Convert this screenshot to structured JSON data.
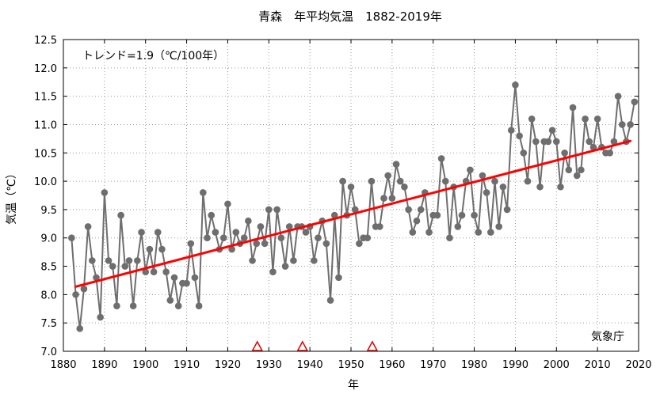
{
  "chart_data": {
    "type": "line",
    "title": "青森　年平均気温　1882-2019年",
    "xlabel": "年",
    "ylabel": "気温（℃）",
    "xlim": [
      1880,
      2020
    ],
    "ylim": [
      7.0,
      12.5
    ],
    "xticks": [
      1880,
      1890,
      1900,
      1910,
      1920,
      1930,
      1940,
      1950,
      1960,
      1970,
      1980,
      1990,
      2000,
      2010,
      2020
    ],
    "yticks": [
      "7.0",
      "7.5",
      "8.0",
      "8.5",
      "9.0",
      "9.5",
      "10.0",
      "10.5",
      "11.0",
      "11.5",
      "12.0",
      "12.5"
    ],
    "grid": true,
    "trend_label": "トレンド=1.9（℃/100年）",
    "source_label": "気象庁",
    "series": [
      {
        "name": "年平均気温",
        "color": "#6e6e6e",
        "x": [
          1882,
          1883,
          1884,
          1885,
          1886,
          1887,
          1888,
          1889,
          1890,
          1891,
          1892,
          1893,
          1894,
          1895,
          1896,
          1897,
          1898,
          1899,
          1900,
          1901,
          1902,
          1903,
          1904,
          1905,
          1906,
          1907,
          1908,
          1909,
          1910,
          1911,
          1912,
          1913,
          1914,
          1915,
          1916,
          1917,
          1918,
          1919,
          1920,
          1921,
          1922,
          1923,
          1924,
          1925,
          1926,
          1927,
          1928,
          1929,
          1930,
          1931,
          1932,
          1933,
          1934,
          1935,
          1936,
          1937,
          1938,
          1939,
          1940,
          1941,
          1942,
          1943,
          1944,
          1945,
          1946,
          1947,
          1948,
          1949,
          1950,
          1951,
          1952,
          1953,
          1954,
          1955,
          1956,
          1957,
          1958,
          1959,
          1960,
          1961,
          1962,
          1963,
          1964,
          1965,
          1966,
          1967,
          1968,
          1969,
          1970,
          1971,
          1972,
          1973,
          1974,
          1975,
          1976,
          1977,
          1978,
          1979,
          1980,
          1981,
          1982,
          1983,
          1984,
          1985,
          1986,
          1987,
          1988,
          1989,
          1990,
          1991,
          1992,
          1993,
          1994,
          1995,
          1996,
          1997,
          1998,
          1999,
          2000,
          2001,
          2002,
          2003,
          2004,
          2005,
          2006,
          2007,
          2008,
          2009,
          2010,
          2011,
          2012,
          2013,
          2014,
          2015,
          2016,
          2017,
          2018,
          2019
        ],
        "y": [
          9.0,
          8.0,
          7.4,
          8.1,
          9.2,
          8.6,
          8.3,
          7.6,
          9.8,
          8.6,
          8.5,
          7.8,
          9.4,
          8.5,
          8.6,
          7.8,
          8.6,
          9.1,
          8.4,
          8.8,
          8.4,
          9.1,
          8.8,
          8.4,
          7.9,
          8.3,
          7.8,
          8.2,
          8.2,
          8.9,
          8.3,
          7.8,
          9.8,
          9.0,
          9.4,
          9.1,
          8.8,
          9.0,
          9.6,
          8.8,
          9.1,
          8.9,
          9.0,
          9.3,
          8.6,
          8.9,
          9.2,
          8.9,
          9.5,
          8.4,
          9.5,
          9.0,
          8.5,
          9.2,
          8.6,
          9.2,
          9.2,
          9.1,
          9.2,
          8.6,
          9.0,
          9.3,
          8.9,
          7.9,
          9.4,
          8.3,
          10.0,
          9.4,
          9.9,
          9.5,
          8.9,
          9.0,
          9.0,
          10.0,
          9.2,
          9.2,
          9.7,
          10.1,
          9.7,
          10.3,
          10.0,
          9.9,
          9.5,
          9.1,
          9.3,
          9.5,
          9.8,
          9.1,
          9.4,
          9.4,
          10.4,
          10.0,
          9.0,
          9.9,
          9.2,
          9.4,
          10.0,
          10.2,
          9.4,
          9.1,
          10.1,
          9.8,
          9.1,
          10.0,
          9.2,
          9.9,
          9.5,
          10.9,
          11.7,
          10.8,
          10.5,
          10.0,
          11.1,
          10.7,
          9.9,
          10.7,
          10.7,
          10.9,
          10.7,
          9.9,
          10.5,
          10.2,
          11.3,
          10.1,
          10.2,
          11.1,
          10.7,
          10.6,
          11.1,
          10.6,
          10.5,
          10.5,
          10.7,
          11.5,
          11.0,
          10.7,
          11.0,
          11.4
        ]
      },
      {
        "name": "トレンド",
        "color": "#ff0000",
        "x": [
          1883,
          2018
        ],
        "y": [
          8.14,
          10.71
        ]
      }
    ],
    "station_change_markers": {
      "color": "#e00000",
      "x": [
        1927,
        1938,
        1955
      ]
    }
  }
}
